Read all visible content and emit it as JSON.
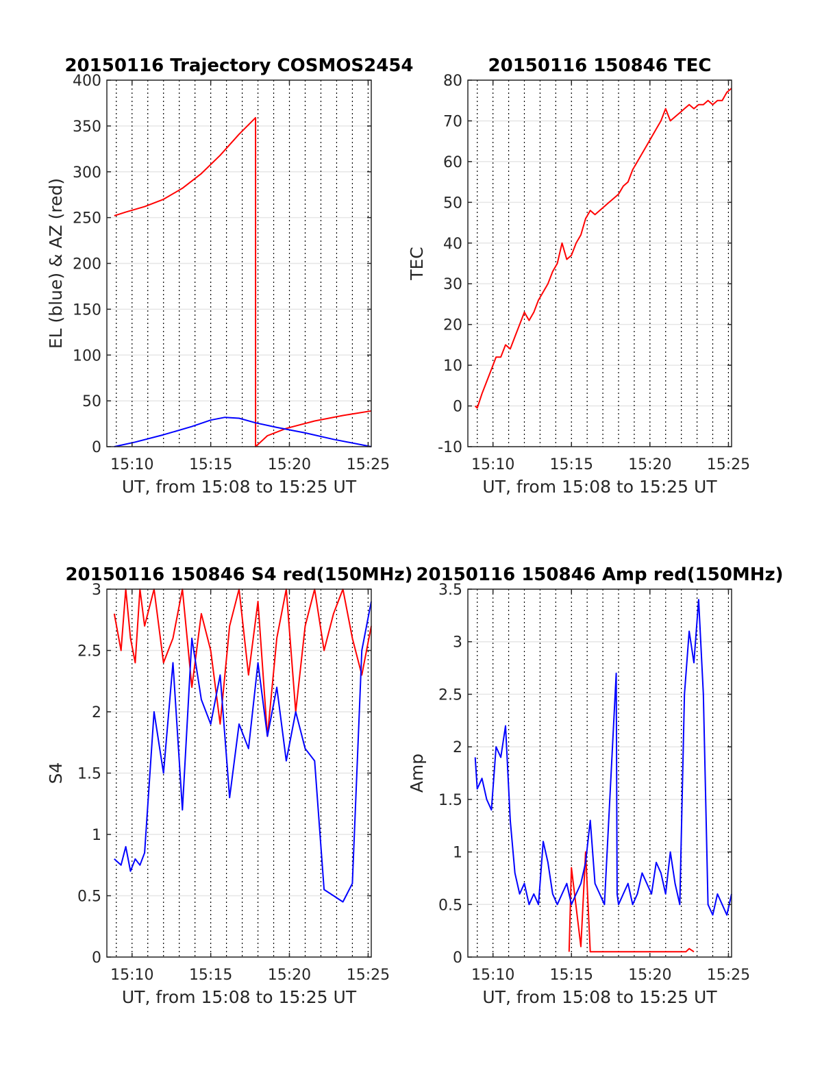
{
  "chart_data": [
    {
      "type": "line",
      "title": "20150116 Trajectory COSMOS2454",
      "xlabel": "UT, from 15:08 to 15:25 UT",
      "ylabel": "EL (blue) & AZ (red)",
      "xlim": [
        15.14,
        15.42
      ],
      "ylim": [
        0,
        400
      ],
      "xticks": [
        15.1667,
        15.25,
        15.3333,
        15.4167
      ],
      "xticklabels": [
        "15:10",
        "15:15",
        "15:20",
        "15:25"
      ],
      "yticks": [
        0,
        50,
        100,
        150,
        200,
        250,
        300,
        350,
        400
      ],
      "yticklabels": [
        "0",
        "50",
        "100",
        "150",
        "200",
        "250",
        "300",
        "350",
        "400"
      ],
      "grid": "on",
      "series": [
        {
          "color": "#ff0000",
          "x": [
            15.1478,
            15.16,
            15.18,
            15.2,
            15.22,
            15.24,
            15.26,
            15.28,
            15.2975,
            15.29751,
            15.31,
            15.33,
            15.36,
            15.39,
            15.42
          ],
          "y": [
            252,
            256,
            262,
            270,
            282,
            298,
            318,
            341,
            359,
            0,
            12,
            20,
            28,
            34,
            39
          ]
        },
        {
          "color": "#0000ff",
          "x": [
            15.1478,
            15.17,
            15.2,
            15.23,
            15.25,
            15.265,
            15.28,
            15.2975,
            15.32,
            15.35,
            15.38,
            15.42
          ],
          "y": [
            0,
            5,
            13,
            22,
            29,
            32,
            31,
            26,
            21,
            15,
            8,
            0
          ]
        }
      ]
    },
    {
      "type": "line",
      "title": "20150116 150846 TEC",
      "xlabel": "UT, from 15:08 to 15:25 UT",
      "ylabel": "TEC",
      "xlim": [
        15.14,
        15.42
      ],
      "ylim": [
        -10,
        80
      ],
      "xticks": [
        15.1667,
        15.25,
        15.3333,
        15.4167
      ],
      "xticklabels": [
        "15:10",
        "15:15",
        "15:20",
        "15:25"
      ],
      "yticks": [
        -10,
        0,
        10,
        20,
        30,
        40,
        50,
        60,
        70,
        80
      ],
      "yticklabels": [
        "-10",
        "0",
        "10",
        "20",
        "30",
        "40",
        "50",
        "60",
        "70",
        "80"
      ],
      "grid": "on",
      "series": [
        {
          "color": "#ff0000",
          "x": [
            15.1478,
            15.15,
            15.155,
            15.16,
            15.165,
            15.17,
            15.175,
            15.18,
            15.185,
            15.19,
            15.195,
            15.2,
            15.205,
            15.21,
            15.215,
            15.22,
            15.225,
            15.23,
            15.235,
            15.24,
            15.245,
            15.25,
            15.255,
            15.26,
            15.265,
            15.27,
            15.275,
            15.28,
            15.285,
            15.29,
            15.295,
            15.3,
            15.305,
            15.31,
            15.315,
            15.32,
            15.325,
            15.33,
            15.335,
            15.34,
            15.345,
            15.35,
            15.355,
            15.36,
            15.365,
            15.37,
            15.375,
            15.38,
            15.385,
            15.39,
            15.395,
            15.4,
            15.405,
            15.41,
            15.415,
            15.42
          ],
          "y": [
            0,
            -0.5,
            3,
            6,
            9,
            12,
            12,
            15,
            14,
            17,
            20,
            23,
            21,
            23,
            26,
            28,
            30,
            33,
            35,
            40,
            36,
            37,
            40,
            42,
            46,
            48,
            47,
            48,
            49,
            50,
            51,
            52,
            54,
            55,
            58,
            60,
            62,
            64,
            66,
            68,
            70,
            73,
            70,
            71,
            72,
            73,
            74,
            73,
            74,
            74,
            75,
            74,
            75,
            75,
            77,
            78
          ]
        }
      ]
    },
    {
      "type": "line",
      "title": "20150116 150846 S4 red(150MHz)",
      "xlabel": "UT, from 15:08 to 15:25 UT",
      "ylabel": "S4",
      "xlim": [
        15.14,
        15.42
      ],
      "ylim": [
        0,
        3
      ],
      "xticks": [
        15.1667,
        15.25,
        15.3333,
        15.4167
      ],
      "xticklabels": [
        "15:10",
        "15:15",
        "15:20",
        "15:25"
      ],
      "yticks": [
        0,
        0.5,
        1,
        1.5,
        2,
        2.5,
        3
      ],
      "yticklabels": [
        "0",
        "0.5",
        "1",
        "1.5",
        "2",
        "2.5",
        "3"
      ],
      "grid": "on",
      "series": [
        {
          "color": "#ff0000",
          "x": [
            15.1478,
            15.155,
            15.16,
            15.165,
            15.17,
            15.175,
            15.18,
            15.19,
            15.2,
            15.21,
            15.22,
            15.23,
            15.24,
            15.25,
            15.26,
            15.27,
            15.28,
            15.29,
            15.3,
            15.31,
            15.32,
            15.33,
            15.34,
            15.35,
            15.36,
            15.37,
            15.38,
            15.39,
            15.4,
            15.41,
            15.42
          ],
          "y": [
            2.8,
            2.5,
            3,
            2.6,
            2.4,
            3,
            2.7,
            3,
            2.4,
            2.6,
            3,
            2.2,
            2.8,
            2.5,
            1.9,
            2.7,
            3,
            2.3,
            2.9,
            1.8,
            2.6,
            3,
            2.0,
            2.7,
            3,
            2.5,
            2.8,
            3,
            2.6,
            2.3,
            2.7
          ]
        },
        {
          "color": "#0000ff",
          "x": [
            15.1478,
            15.155,
            15.16,
            15.165,
            15.17,
            15.175,
            15.18,
            15.19,
            15.2,
            15.21,
            15.22,
            15.23,
            15.24,
            15.25,
            15.26,
            15.27,
            15.28,
            15.29,
            15.3,
            15.31,
            15.32,
            15.33,
            15.34,
            15.35,
            15.36,
            15.37,
            15.38,
            15.39,
            15.4,
            15.41,
            15.42
          ],
          "y": [
            0.8,
            0.75,
            0.9,
            0.7,
            0.8,
            0.75,
            0.85,
            2.0,
            1.5,
            2.4,
            1.2,
            2.6,
            2.1,
            1.9,
            2.3,
            1.3,
            1.9,
            1.7,
            2.4,
            1.8,
            2.2,
            1.6,
            2.0,
            1.7,
            1.6,
            0.55,
            0.5,
            0.45,
            0.6,
            2.5,
            2.9
          ]
        }
      ]
    },
    {
      "type": "line",
      "title": "20150116 150846 Amp red(150MHz)",
      "xlabel": "UT, from 15:08 to 15:25 UT",
      "ylabel": "Amp",
      "xlim": [
        15.14,
        15.42
      ],
      "ylim": [
        0,
        3.5
      ],
      "xticks": [
        15.1667,
        15.25,
        15.3333,
        15.4167
      ],
      "xticklabels": [
        "15:10",
        "15:15",
        "15:20",
        "15:25"
      ],
      "yticks": [
        0,
        0.5,
        1,
        1.5,
        2,
        2.5,
        3,
        3.5
      ],
      "yticklabels": [
        "0",
        "0.5",
        "1",
        "1.5",
        "2",
        "2.5",
        "3",
        "3.5"
      ],
      "grid": "on",
      "series": [
        {
          "color": "#ff0000",
          "x": [
            15.2475,
            15.25,
            15.26,
            15.265,
            15.27,
            15.3715,
            15.375,
            15.38
          ],
          "y": [
            0.05,
            0.85,
            0.1,
            1.0,
            0.05,
            0.05,
            0.08,
            0.05
          ]
        },
        {
          "color": "#0000ff",
          "x": [
            15.1478,
            15.15,
            15.155,
            15.16,
            15.165,
            15.17,
            15.175,
            15.18,
            15.185,
            15.19,
            15.195,
            15.2,
            15.205,
            15.21,
            15.215,
            15.22,
            15.225,
            15.23,
            15.235,
            15.24,
            15.245,
            15.25,
            15.255,
            15.26,
            15.265,
            15.27,
            15.275,
            15.28,
            15.285,
            15.2975,
            15.2985,
            15.3,
            15.305,
            15.31,
            15.315,
            15.32,
            15.325,
            15.33,
            15.335,
            15.34,
            15.345,
            15.35,
            15.355,
            15.36,
            15.365,
            15.37,
            15.375,
            15.38,
            15.385,
            15.39,
            15.395,
            15.4,
            15.405,
            15.41,
            15.415,
            15.42
          ],
          "y": [
            1.9,
            1.6,
            1.7,
            1.5,
            1.4,
            2.0,
            1.9,
            2.2,
            1.3,
            0.8,
            0.6,
            0.7,
            0.5,
            0.6,
            0.5,
            1.1,
            0.9,
            0.6,
            0.5,
            0.6,
            0.7,
            0.5,
            0.6,
            0.7,
            0.9,
            1.3,
            0.7,
            0.6,
            0.5,
            2.7,
            0.6,
            0.5,
            0.6,
            0.7,
            0.5,
            0.6,
            0.8,
            0.7,
            0.6,
            0.9,
            0.8,
            0.6,
            1.0,
            0.7,
            0.5,
            2.5,
            3.1,
            2.8,
            3.4,
            2.5,
            0.5,
            0.4,
            0.6,
            0.5,
            0.4,
            0.6
          ]
        }
      ]
    }
  ]
}
